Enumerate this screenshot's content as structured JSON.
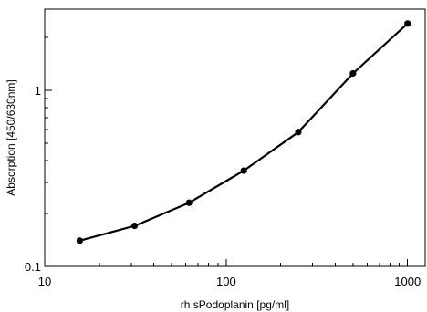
{
  "chart_data": {
    "type": "line",
    "x_scale": "log",
    "y_scale": "log",
    "xlabel": "rh sPodoplanin [pg/ml]",
    "ylabel": "Absorption [450/630nm]",
    "xlim": [
      10,
      1250
    ],
    "ylim": [
      0.1,
      2.9
    ],
    "x_ticks": [
      10,
      100,
      1000
    ],
    "y_ticks": [
      0.1,
      1
    ],
    "x_tick_labels": [
      "10",
      "100",
      "1000"
    ],
    "y_tick_labels": [
      "0.1",
      "1"
    ],
    "grid": false,
    "series": [
      {
        "x": [
          15.6,
          31.3,
          62.5,
          125,
          250,
          500,
          1000
        ],
        "y": [
          0.14,
          0.17,
          0.23,
          0.35,
          0.58,
          1.25,
          2.4
        ]
      }
    ],
    "colors": {
      "line": "#000000",
      "marker": "#000000"
    }
  }
}
